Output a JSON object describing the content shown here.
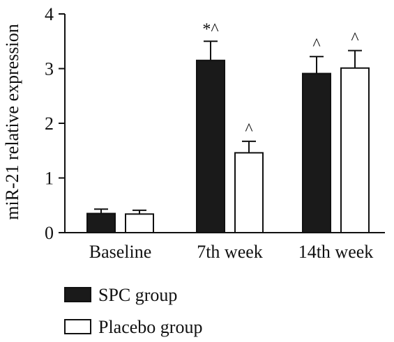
{
  "chart_data": {
    "type": "bar",
    "title": "",
    "xlabel": "",
    "ylabel": "miR-21 relative expression",
    "ylim": [
      0,
      4
    ],
    "yticks": [
      0,
      1,
      2,
      3,
      4
    ],
    "categories": [
      "Baseline",
      "7th week",
      "14th week"
    ],
    "series": [
      {
        "name": "SPC group",
        "color": "#1a1a1a",
        "values": [
          0.35,
          3.15,
          2.91
        ],
        "errors": [
          0.08,
          0.35,
          0.31
        ],
        "annotations": [
          "",
          "*^",
          "^"
        ]
      },
      {
        "name": "Placebo group",
        "color": "#ffffff",
        "values": [
          0.34,
          1.46,
          3.01
        ],
        "errors": [
          0.07,
          0.21,
          0.32
        ],
        "annotations": [
          "",
          "^",
          "^"
        ]
      }
    ],
    "grid": false,
    "legend_position": "bottom-left"
  }
}
